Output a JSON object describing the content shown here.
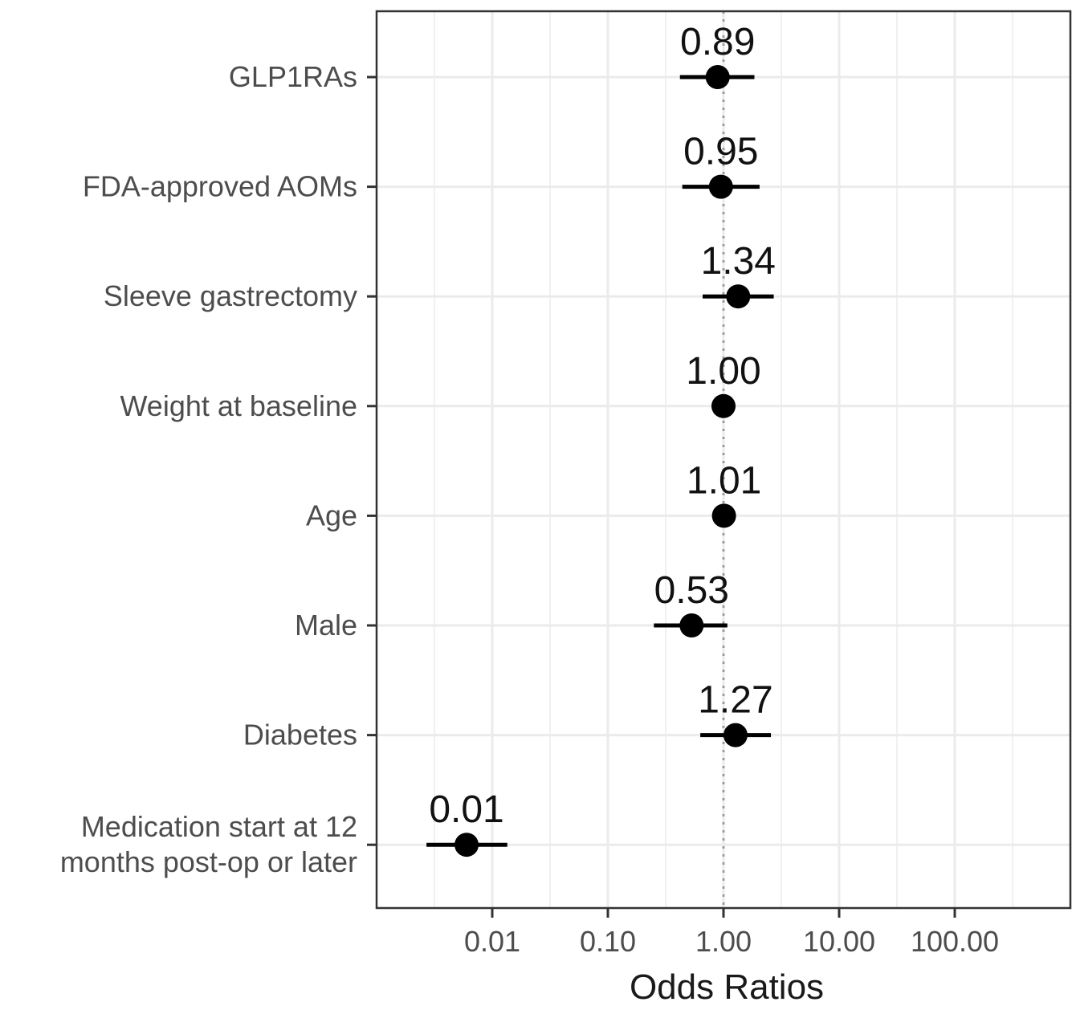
{
  "chart_data": {
    "type": "scatter",
    "subtype": "forest-plot",
    "title": "",
    "xlabel": "Odds Ratios",
    "ylabel": "",
    "x_scale": "log10",
    "xlim": [
      0.001,
      1000
    ],
    "x_ticks": [
      0.01,
      0.1,
      1,
      10,
      100
    ],
    "x_tick_labels": [
      "0.01",
      "0.10",
      "1.00",
      "10.00",
      "100.00"
    ],
    "reference_line": 1,
    "grid": true,
    "legend": "none",
    "rows": [
      {
        "label": "GLP1RAs",
        "label_lines": [
          "GLP1RAs"
        ],
        "or": 0.89,
        "or_label": "0.89",
        "ci_low": 0.42,
        "ci_high": 1.85
      },
      {
        "label": "FDA-approved AOMs",
        "label_lines": [
          "FDA-approved AOMs"
        ],
        "or": 0.95,
        "or_label": "0.95",
        "ci_low": 0.44,
        "ci_high": 2.05
      },
      {
        "label": "Sleeve gastrectomy",
        "label_lines": [
          "Sleeve gastrectomy"
        ],
        "or": 1.34,
        "or_label": "1.34",
        "ci_low": 0.66,
        "ci_high": 2.72
      },
      {
        "label": "Weight at baseline",
        "label_lines": [
          "Weight at baseline"
        ],
        "or": 1.0,
        "or_label": "1.00",
        "ci_low": 0.99,
        "ci_high": 1.01
      },
      {
        "label": "Age",
        "label_lines": [
          "Age"
        ],
        "or": 1.01,
        "or_label": "1.01",
        "ci_low": 0.98,
        "ci_high": 1.04
      },
      {
        "label": "Male",
        "label_lines": [
          "Male"
        ],
        "or": 0.53,
        "or_label": "0.53",
        "ci_low": 0.25,
        "ci_high": 1.08
      },
      {
        "label": "Diabetes",
        "label_lines": [
          "Diabetes"
        ],
        "or": 1.27,
        "or_label": "1.27",
        "ci_low": 0.63,
        "ci_high": 2.57
      },
      {
        "label": "Medication start at 12 months post-op or later",
        "label_lines": [
          "Medication start at 12",
          "months post-op or later"
        ],
        "or": 0.006,
        "or_label": "0.01",
        "ci_low": 0.0027,
        "ci_high": 0.0135
      }
    ],
    "colors": {
      "point": "#000000",
      "grid": "#ebebeb",
      "panel_border": "#333333",
      "reference_line": "#9e9e9e",
      "axis_text": "#4d4d4d"
    }
  }
}
